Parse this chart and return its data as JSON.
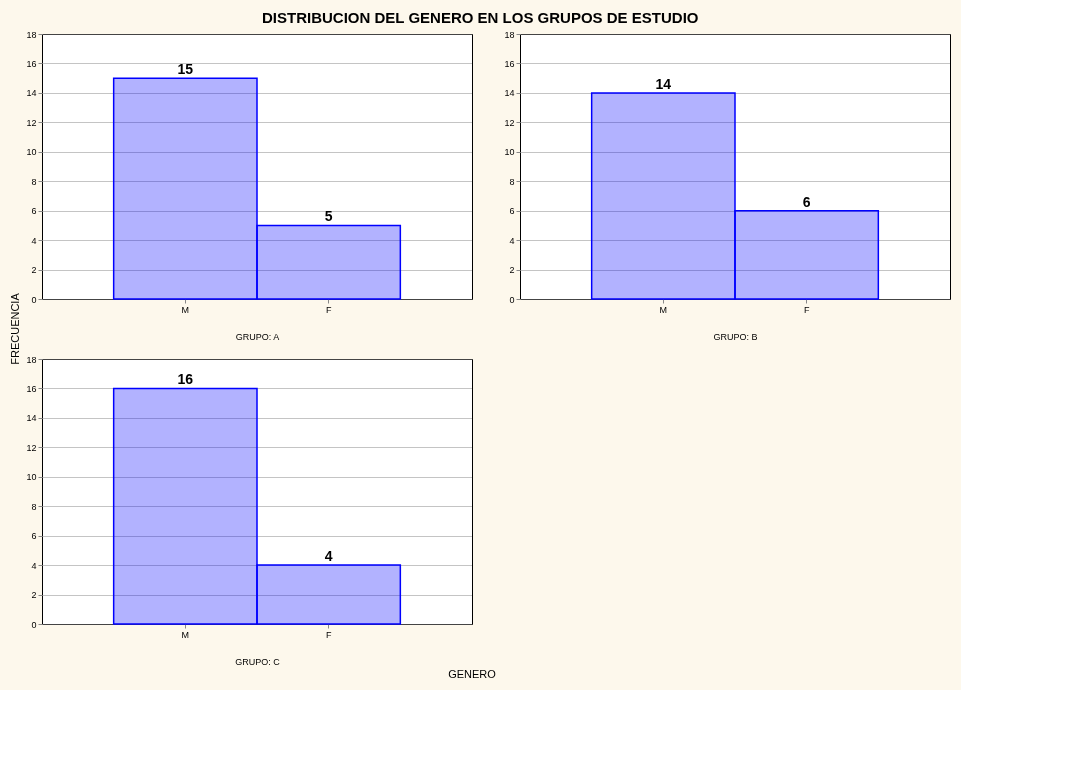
{
  "chart_data": [
    {
      "type": "bar",
      "title": "DISTRIBUCION DEL GENERO EN LOS GRUPOS DE ESTUDIO",
      "subtitle": "GRUPO: A",
      "ylabel": "FRECUENCIA",
      "categories": [
        "M",
        "F"
      ],
      "values": [
        15,
        5
      ],
      "color": "#0000ff",
      "ylim": [
        0,
        18
      ],
      "yticks": [
        0,
        2,
        4,
        6,
        8,
        10,
        12,
        14,
        16,
        18
      ],
      "grid": "y",
      "data_labels": true
    },
    {
      "type": "bar",
      "subtitle": "GRUPO: B",
      "categories": [
        "M",
        "F"
      ],
      "values": [
        14,
        6
      ],
      "color": "#0000ff",
      "ylim": [
        0,
        18
      ],
      "yticks": [
        0,
        2,
        4,
        6,
        8,
        10,
        12,
        14,
        16,
        18
      ],
      "grid": "y",
      "data_labels": true
    },
    {
      "type": "bar",
      "subtitle": "GRUPO: C",
      "xlabel": "GENERO",
      "categories": [
        "M",
        "F"
      ],
      "values": [
        16,
        4
      ],
      "color": "#0000ff",
      "ylim": [
        0,
        18
      ],
      "yticks": [
        0,
        2,
        4,
        6,
        8,
        10,
        12,
        14,
        16,
        18
      ],
      "grid": "y",
      "data_labels": true
    }
  ]
}
